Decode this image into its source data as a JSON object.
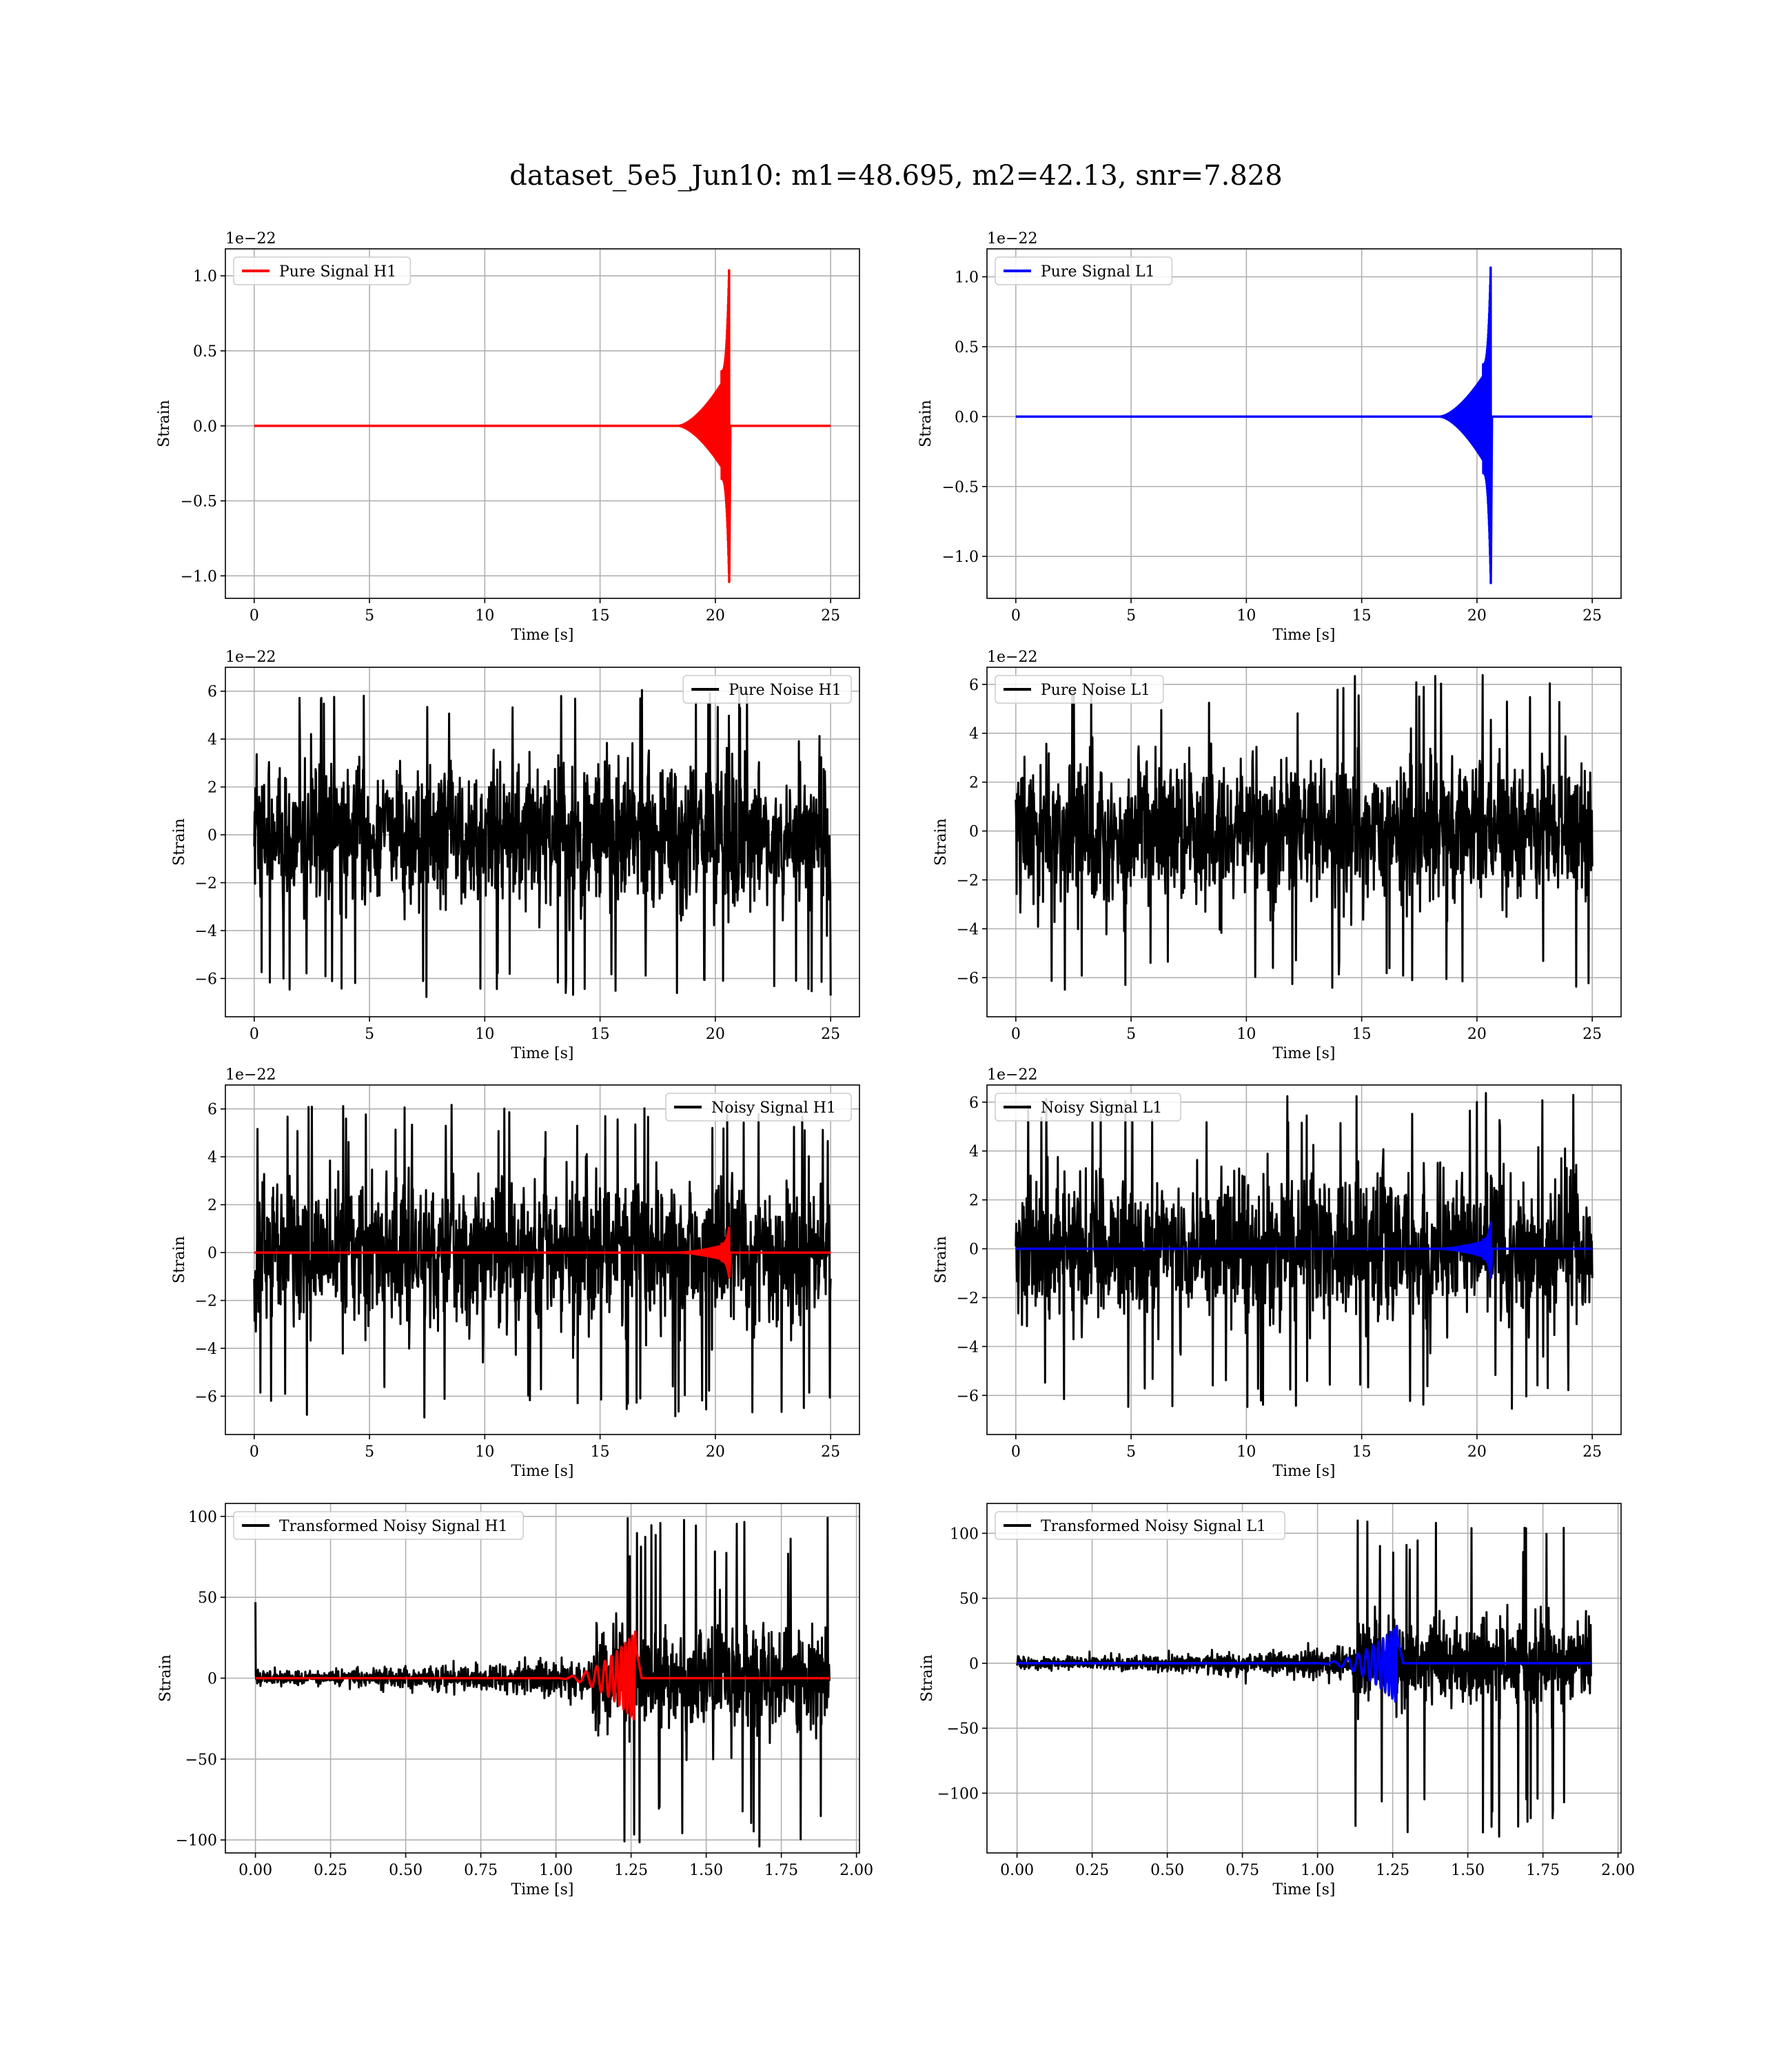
{
  "suptitle": "dataset_5e5_Jun10: m1=48.695, m2=42.13, snr=7.828",
  "colors": {
    "h1": "#ff0000",
    "l1": "#0000ff",
    "noise": "#000000",
    "grid": "#b0b0b0"
  },
  "chart_data": [
    {
      "type": "line",
      "detector": "H1",
      "offset_label": "1e−22",
      "xlabel": "Time [s]",
      "ylabel": "Strain",
      "xlim": [
        -1.25,
        26.25
      ],
      "ylim": [
        -1.15,
        1.18
      ],
      "xticks": [
        0,
        5,
        10,
        15,
        20,
        25
      ],
      "xtick_labels": [
        "0",
        "5",
        "10",
        "15",
        "20",
        "25"
      ],
      "yticks": [
        -1.0,
        -0.5,
        0.0,
        0.5,
        1.0
      ],
      "ytick_labels": [
        "−1.0",
        "−0.5",
        "0.0",
        "0.5",
        "1.0"
      ],
      "grid": true,
      "legend_loc": "upper left",
      "series": [
        {
          "name": "Pure Signal H1",
          "color": "#ff0000",
          "kind": "chirp",
          "t_merge": 20.6,
          "peak": 1.07,
          "trough": -1.04
        }
      ]
    },
    {
      "type": "line",
      "detector": "L1",
      "offset_label": "1e−22",
      "xlabel": "Time [s]",
      "ylabel": "Strain",
      "xlim": [
        -1.25,
        26.25
      ],
      "ylim": [
        -1.3,
        1.2
      ],
      "xticks": [
        0,
        5,
        10,
        15,
        20,
        25
      ],
      "xtick_labels": [
        "0",
        "5",
        "10",
        "15",
        "20",
        "25"
      ],
      "yticks": [
        -1.0,
        -0.5,
        0.0,
        0.5,
        1.0
      ],
      "ytick_labels": [
        "−1.0",
        "−0.5",
        "0.0",
        "0.5",
        "1.0"
      ],
      "grid": true,
      "legend_loc": "upper left",
      "series": [
        {
          "name": "Pure Signal L1",
          "color": "#0000ff",
          "kind": "chirp",
          "t_merge": 20.6,
          "peak": 1.1,
          "trough": -1.19
        }
      ]
    },
    {
      "type": "line",
      "detector": "H1",
      "offset_label": "1e−22",
      "xlabel": "Time [s]",
      "ylabel": "Strain",
      "xlim": [
        -1.25,
        26.25
      ],
      "ylim": [
        -7.6,
        7.0
      ],
      "xticks": [
        0,
        5,
        10,
        15,
        20,
        25
      ],
      "xtick_labels": [
        "0",
        "5",
        "10",
        "15",
        "20",
        "25"
      ],
      "yticks": [
        -6,
        -4,
        -2,
        0,
        2,
        4,
        6
      ],
      "ytick_labels": [
        "−6",
        "−4",
        "−2",
        "0",
        "2",
        "4",
        "6"
      ],
      "grid": true,
      "legend_loc": "upper right",
      "series": [
        {
          "name": "Pure Noise H1",
          "color": "#000000",
          "kind": "noise",
          "sigma": 1.5,
          "t_start": 0,
          "t_end": 25,
          "max": 6.2,
          "min": -6.9
        }
      ]
    },
    {
      "type": "line",
      "detector": "L1",
      "offset_label": "1e−22",
      "xlabel": "Time [s]",
      "ylabel": "Strain",
      "xlim": [
        -1.25,
        26.25
      ],
      "ylim": [
        -7.6,
        6.7
      ],
      "xticks": [
        0,
        5,
        10,
        15,
        20,
        25
      ],
      "xtick_labels": [
        "0",
        "5",
        "10",
        "15",
        "20",
        "25"
      ],
      "yticks": [
        -6,
        -4,
        -2,
        0,
        2,
        4,
        6
      ],
      "ytick_labels": [
        "−6",
        "−4",
        "−2",
        "0",
        "2",
        "4",
        "6"
      ],
      "grid": true,
      "legend_loc": "upper left",
      "series": [
        {
          "name": "Pure Noise L1",
          "color": "#000000",
          "kind": "noise",
          "sigma": 1.5,
          "t_start": 0,
          "t_end": 25,
          "max": 6.4,
          "min": -6.6
        }
      ]
    },
    {
      "type": "line",
      "detector": "H1",
      "offset_label": "1e−22",
      "xlabel": "Time [s]",
      "ylabel": "Strain",
      "xlim": [
        -1.25,
        26.25
      ],
      "ylim": [
        -7.6,
        7.0
      ],
      "xticks": [
        0,
        5,
        10,
        15,
        20,
        25
      ],
      "xtick_labels": [
        "0",
        "5",
        "10",
        "15",
        "20",
        "25"
      ],
      "yticks": [
        -6,
        -4,
        -2,
        0,
        2,
        4,
        6
      ],
      "ytick_labels": [
        "−6",
        "−4",
        "−2",
        "0",
        "2",
        "4",
        "6"
      ],
      "grid": true,
      "legend_loc": "upper right",
      "series": [
        {
          "name": "Noisy Signal H1",
          "color": "#000000",
          "kind": "noise",
          "sigma": 1.5,
          "t_start": 0,
          "t_end": 25,
          "max": 6.2,
          "min": -6.9
        },
        {
          "color": "#ff0000",
          "kind": "chirp",
          "t_merge": 20.6,
          "peak": 1.07,
          "trough": -1.04
        }
      ]
    },
    {
      "type": "line",
      "detector": "L1",
      "offset_label": "1e−22",
      "xlabel": "Time [s]",
      "ylabel": "Strain",
      "xlim": [
        -1.25,
        26.25
      ],
      "ylim": [
        -7.6,
        6.7
      ],
      "xticks": [
        0,
        5,
        10,
        15,
        20,
        25
      ],
      "xtick_labels": [
        "0",
        "5",
        "10",
        "15",
        "20",
        "25"
      ],
      "yticks": [
        -6,
        -4,
        -2,
        0,
        2,
        4,
        6
      ],
      "ytick_labels": [
        "−6",
        "−4",
        "−2",
        "0",
        "2",
        "4",
        "6"
      ],
      "grid": true,
      "legend_loc": "upper left",
      "series": [
        {
          "name": "Noisy Signal L1",
          "color": "#000000",
          "kind": "noise",
          "sigma": 1.5,
          "t_start": 0,
          "t_end": 25,
          "max": 6.4,
          "min": -6.6
        },
        {
          "color": "#0000ff",
          "kind": "chirp",
          "t_merge": 20.6,
          "peak": 1.1,
          "trough": -1.19
        }
      ]
    },
    {
      "type": "line",
      "detector": "H1",
      "offset_label": "",
      "xlabel": "Time [s]",
      "ylabel": "Strain",
      "xlim": [
        -0.1,
        2.01
      ],
      "ylim": [
        -108,
        108
      ],
      "xticks": [
        0.0,
        0.25,
        0.5,
        0.75,
        1.0,
        1.25,
        1.5,
        1.75,
        2.0
      ],
      "xtick_labels": [
        "0.00",
        "0.25",
        "0.50",
        "0.75",
        "1.00",
        "1.25",
        "1.50",
        "1.75",
        "2.00"
      ],
      "yticks": [
        -100,
        -50,
        0,
        50,
        100
      ],
      "ytick_labels": [
        "−100",
        "−50",
        "0",
        "50",
        "100"
      ],
      "grid": true,
      "legend_loc": "upper left",
      "series": [
        {
          "name": "Transformed Noisy Signal H1",
          "color": "#000000",
          "kind": "whitened",
          "t_start": 0,
          "t_end": 1.91,
          "spike_t": 1.12,
          "max": 100,
          "min": -106,
          "start_spike": 47
        },
        {
          "color": "#ff0000",
          "kind": "chirp_short",
          "t_merge": 1.265,
          "peak": 29,
          "trough": -27
        }
      ]
    },
    {
      "type": "line",
      "detector": "L1",
      "offset_label": "",
      "xlabel": "Time [s]",
      "ylabel": "Strain",
      "xlim": [
        -0.1,
        2.01
      ],
      "ylim": [
        -146,
        123
      ],
      "xticks": [
        0.0,
        0.25,
        0.5,
        0.75,
        1.0,
        1.25,
        1.5,
        1.75,
        2.0
      ],
      "xtick_labels": [
        "0.00",
        "0.25",
        "0.50",
        "0.75",
        "1.00",
        "1.25",
        "1.50",
        "1.75",
        "2.00"
      ],
      "yticks": [
        -100,
        -50,
        0,
        50,
        100
      ],
      "ytick_labels": [
        "−100",
        "−50",
        "0",
        "50",
        "100"
      ],
      "grid": true,
      "legend_loc": "upper left",
      "series": [
        {
          "name": "Transformed Noisy Signal L1",
          "color": "#000000",
          "kind": "whitened",
          "t_start": 0,
          "t_end": 1.91,
          "spike_t": 1.12,
          "max": 112,
          "min": -136,
          "start_spike": 0
        },
        {
          "color": "#0000ff",
          "kind": "chirp_short",
          "t_merge": 1.265,
          "peak": 29,
          "trough": -31
        }
      ]
    }
  ]
}
